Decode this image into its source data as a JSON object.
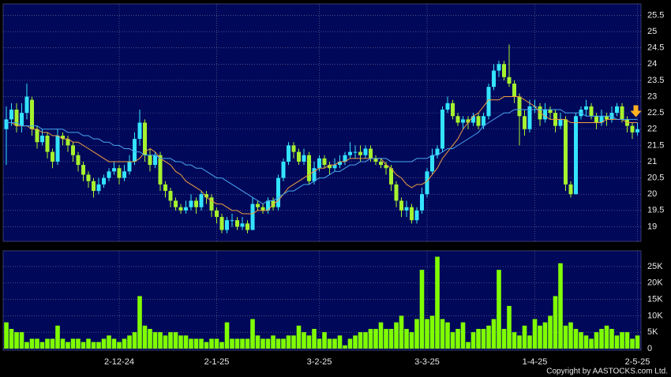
{
  "chart_data": [
    {
      "type": "candlestick",
      "categories": [
        null,
        null,
        null,
        null,
        null,
        null,
        null,
        null,
        null,
        null,
        null,
        null,
        null,
        null,
        null,
        null,
        null,
        null,
        null,
        null,
        null,
        null,
        "2-12-24",
        null,
        null,
        null,
        null,
        null,
        null,
        null,
        null,
        null,
        null,
        null,
        null,
        null,
        null,
        null,
        null,
        null,
        null,
        "2-1-25",
        null,
        null,
        null,
        null,
        null,
        null,
        null,
        null,
        null,
        null,
        null,
        null,
        null,
        null,
        null,
        null,
        null,
        null,
        null,
        "3-2-25",
        null,
        null,
        null,
        null,
        null,
        null,
        null,
        null,
        null,
        null,
        null,
        null,
        null,
        null,
        null,
        null,
        null,
        null,
        null,
        null,
        "3-3-25",
        null,
        null,
        null,
        null,
        null,
        null,
        null,
        null,
        null,
        null,
        null,
        null,
        null,
        null,
        null,
        null,
        null,
        null,
        null,
        null,
        "1-4-25",
        null,
        null,
        null,
        null,
        null,
        null,
        null,
        null,
        null,
        null,
        null,
        null,
        null,
        null,
        null,
        null,
        null,
        null,
        null,
        "2-5-25"
      ],
      "open": [
        22.0,
        22.3,
        22.6,
        22.1,
        22.5,
        22.9,
        22.0,
        21.6,
        21.8,
        21.3,
        21.0,
        21.8,
        21.7,
        21.5,
        21.2,
        20.9,
        20.6,
        20.4,
        20.1,
        20.3,
        20.5,
        20.7,
        20.8,
        20.5,
        20.7,
        21.0,
        21.7,
        22.2,
        21.2,
        20.9,
        21.2,
        20.3,
        20.1,
        19.8,
        19.6,
        19.5,
        19.6,
        19.8,
        19.6,
        20.0,
        19.9,
        19.5,
        19.3,
        18.9,
        19.2,
        19.2,
        19.0,
        19.1,
        18.9,
        19.7,
        19.6,
        19.5,
        19.8,
        19.6,
        20.5,
        21.0,
        21.5,
        21.3,
        21.0,
        21.2,
        20.4,
        20.8,
        21.1,
        20.9,
        20.8,
        20.9,
        21.0,
        21.2,
        21.3,
        21.3,
        21.2,
        21.4,
        21.1,
        21.0,
        20.9,
        20.8,
        20.3,
        19.8,
        19.5,
        19.6,
        19.2,
        19.5,
        20.0,
        20.7,
        21.2,
        21.4,
        22.6,
        22.8,
        22.4,
        22.2,
        22.3,
        22.2,
        22.4,
        22.1,
        22.4,
        23.3,
        23.8,
        24.0,
        23.6,
        23.4,
        23.0,
        22.4,
        22.0,
        22.7,
        22.7,
        22.3,
        22.6,
        22.5,
        22.1,
        22.3,
        20.3,
        20.0,
        22.4,
        22.6,
        22.7,
        22.4,
        22.2,
        22.4,
        22.3,
        22.5,
        22.7,
        22.3,
        22.1,
        21.9
      ],
      "high": [
        22.7,
        22.8,
        22.8,
        22.8,
        23.4,
        23.0,
        22.1,
        22.0,
        21.9,
        21.4,
        22.0,
        21.9,
        21.8,
        21.6,
        21.3,
        21.0,
        20.7,
        20.5,
        20.5,
        20.6,
        20.8,
        21.0,
        20.9,
        20.9,
        21.2,
        21.9,
        22.6,
        22.3,
        21.4,
        21.3,
        21.3,
        20.4,
        20.2,
        19.9,
        19.7,
        19.8,
        20.0,
        19.9,
        20.1,
        20.1,
        20.0,
        19.6,
        19.4,
        19.3,
        19.4,
        19.3,
        19.3,
        19.2,
        19.9,
        19.8,
        19.7,
        19.9,
        19.9,
        20.6,
        21.1,
        21.6,
        21.6,
        21.4,
        21.4,
        21.3,
        21.0,
        21.2,
        21.2,
        21.0,
        21.1,
        21.2,
        21.3,
        21.6,
        21.5,
        21.5,
        21.5,
        21.5,
        21.2,
        21.1,
        21.0,
        20.9,
        20.4,
        19.9,
        19.8,
        19.7,
        19.6,
        20.2,
        20.8,
        21.4,
        21.5,
        22.7,
        23.0,
        22.9,
        22.5,
        22.4,
        22.4,
        22.5,
        22.5,
        22.5,
        23.4,
        24.0,
        24.1,
        24.1,
        24.6,
        23.5,
        23.1,
        22.6,
        22.9,
        22.9,
        22.8,
        22.8,
        22.7,
        22.6,
        22.5,
        22.4,
        20.4,
        22.5,
        22.7,
        22.9,
        22.8,
        22.5,
        22.6,
        22.5,
        22.7,
        22.8,
        22.8,
        22.4,
        22.2,
        22.2
      ],
      "low": [
        20.9,
        22.1,
        21.9,
        21.9,
        22.3,
        21.8,
        21.4,
        21.5,
        21.1,
        20.8,
        20.9,
        21.5,
        21.3,
        21.0,
        20.7,
        20.4,
        20.2,
        19.9,
        20.0,
        20.2,
        20.4,
        20.6,
        20.3,
        20.4,
        20.6,
        20.9,
        21.5,
        21.0,
        20.7,
        20.8,
        20.1,
        19.9,
        19.6,
        19.5,
        19.4,
        19.4,
        19.5,
        19.4,
        19.5,
        19.7,
        19.3,
        19.1,
        18.8,
        18.8,
        19.0,
        18.9,
        18.9,
        18.8,
        18.9,
        19.5,
        19.4,
        19.4,
        19.5,
        19.5,
        20.4,
        20.9,
        21.1,
        20.9,
        20.9,
        20.3,
        20.3,
        20.7,
        20.8,
        20.6,
        20.7,
        20.8,
        20.9,
        21.1,
        21.1,
        21.0,
        21.1,
        21.0,
        20.9,
        20.8,
        20.6,
        20.1,
        19.6,
        19.3,
        19.3,
        19.1,
        19.1,
        19.4,
        19.9,
        20.6,
        21.1,
        21.3,
        22.5,
        22.3,
        22.1,
        22.0,
        22.0,
        22.1,
        22.0,
        22.0,
        22.3,
        23.2,
        23.6,
        23.5,
        23.3,
        22.8,
        21.5,
        21.8,
        21.9,
        22.5,
        22.1,
        22.2,
        22.3,
        21.9,
        22.0,
        20.1,
        19.9,
        20.0,
        22.3,
        22.4,
        22.3,
        22.0,
        22.1,
        22.1,
        22.2,
        22.4,
        22.2,
        21.9,
        21.7,
        21.8
      ],
      "close": [
        22.3,
        22.6,
        22.1,
        22.5,
        23.0,
        22.0,
        21.6,
        21.8,
        21.3,
        21.0,
        21.8,
        21.7,
        21.5,
        21.2,
        20.9,
        20.6,
        20.4,
        20.1,
        20.3,
        20.5,
        20.7,
        20.8,
        20.5,
        20.7,
        21.0,
        21.7,
        22.2,
        21.2,
        20.9,
        21.2,
        20.3,
        20.1,
        19.8,
        19.6,
        19.5,
        19.6,
        19.8,
        19.6,
        20.0,
        19.9,
        19.5,
        19.3,
        18.9,
        19.2,
        19.2,
        19.0,
        19.1,
        18.9,
        19.7,
        19.6,
        19.5,
        19.8,
        19.6,
        20.5,
        21.0,
        21.5,
        21.3,
        21.0,
        21.2,
        20.4,
        20.8,
        21.1,
        20.9,
        20.8,
        20.9,
        21.0,
        21.2,
        21.3,
        21.3,
        21.2,
        21.4,
        21.1,
        21.0,
        20.9,
        20.8,
        20.3,
        19.8,
        19.5,
        19.6,
        19.2,
        19.5,
        20.0,
        20.7,
        21.2,
        21.4,
        22.6,
        22.8,
        22.4,
        22.2,
        22.3,
        22.2,
        22.4,
        22.1,
        22.4,
        23.3,
        23.8,
        24.0,
        23.6,
        23.4,
        23.0,
        22.4,
        22.0,
        22.7,
        22.7,
        22.3,
        22.6,
        22.5,
        22.1,
        22.3,
        20.3,
        20.0,
        22.4,
        22.6,
        22.7,
        22.4,
        22.2,
        22.4,
        22.3,
        22.5,
        22.7,
        22.3,
        22.1,
        21.9,
        22.0
      ],
      "up_color": "#33e3ff",
      "down_color": "#a6f22e",
      "lines": [
        {
          "color": "#f0a040",
          "values": [
            22.2,
            22.2,
            22.1,
            22.1,
            22.1,
            22.0,
            22.0,
            21.9,
            21.9,
            21.8,
            21.8,
            21.7,
            21.7,
            21.6,
            21.6,
            21.5,
            21.4,
            21.3,
            21.2,
            21.1,
            21.0,
            21.0,
            21.0,
            21.0,
            21.0,
            21.0,
            21.1,
            21.3,
            21.4,
            21.3,
            21.1,
            21.0,
            20.9,
            20.7,
            20.6,
            20.4,
            20.3,
            20.2,
            20.1,
            19.9,
            19.8,
            19.7,
            19.7,
            19.6,
            19.5,
            19.5,
            19.4,
            19.4,
            19.4,
            19.5,
            19.5,
            19.5,
            19.7,
            19.8,
            20.0,
            20.2,
            20.3,
            20.4,
            20.5,
            20.6,
            20.7,
            20.8,
            20.8,
            20.9,
            20.9,
            21.0,
            21.0,
            21.1,
            21.1,
            21.1,
            21.1,
            21.1,
            21.1,
            21.1,
            20.9,
            20.8,
            20.6,
            20.5,
            20.3,
            20.2,
            20.3,
            20.3,
            20.4,
            20.6,
            20.8,
            21.1,
            21.3,
            21.5,
            21.7,
            22.0,
            22.2,
            22.4,
            22.5,
            22.7,
            22.9,
            22.9,
            22.9,
            23.0,
            23.0,
            23.0,
            23.0,
            22.9,
            22.8,
            22.7,
            22.5,
            22.4,
            22.3,
            22.3,
            22.3,
            22.3,
            22.2,
            22.2,
            22.2,
            22.2,
            22.2,
            22.2,
            22.2,
            22.3,
            22.3,
            22.3,
            22.3,
            22.2,
            22.2,
            22.2
          ]
        },
        {
          "color": "#4aa8f0",
          "values": [
            22.2,
            22.2,
            22.2,
            22.1,
            22.1,
            22.1,
            22.1,
            22.0,
            22.0,
            22.0,
            22.0,
            22.0,
            21.9,
            21.9,
            21.9,
            21.8,
            21.8,
            21.7,
            21.7,
            21.6,
            21.6,
            21.5,
            21.5,
            21.4,
            21.4,
            21.3,
            21.3,
            21.2,
            21.2,
            21.2,
            21.1,
            21.1,
            21.1,
            21.0,
            21.0,
            20.9,
            20.9,
            20.8,
            20.8,
            20.7,
            20.6,
            20.5,
            20.5,
            20.4,
            20.3,
            20.2,
            20.1,
            20.0,
            19.9,
            19.8,
            19.7,
            19.8,
            19.8,
            19.9,
            20.0,
            20.1,
            20.1,
            20.2,
            20.3,
            20.3,
            20.4,
            20.5,
            20.5,
            20.6,
            20.7,
            20.7,
            20.8,
            20.9,
            20.9,
            21.0,
            21.0,
            21.1,
            21.1,
            21.1,
            21.1,
            21.0,
            21.0,
            21.0,
            21.0,
            21.0,
            21.1,
            21.1,
            21.1,
            21.2,
            21.2,
            21.3,
            21.4,
            21.4,
            21.5,
            21.6,
            21.7,
            21.8,
            21.9,
            22.1,
            22.2,
            22.3,
            22.4,
            22.5,
            22.5,
            22.6,
            22.6,
            22.6,
            22.6,
            22.6,
            22.6,
            22.6,
            22.6,
            22.6,
            22.6,
            22.5,
            22.5,
            22.5,
            22.5,
            22.4,
            22.4,
            22.4,
            22.4,
            22.4,
            22.4,
            22.3,
            22.3,
            22.3,
            22.3,
            22.3
          ]
        }
      ],
      "ylim": [
        18.55,
        25.85
      ],
      "yticks": [
        19,
        19.5,
        20,
        20.5,
        21,
        21.5,
        22,
        22.5,
        23,
        23.5,
        24,
        24.5,
        25,
        25.5
      ],
      "grid": true
    },
    {
      "type": "bar",
      "values": [
        8000,
        6000,
        5000,
        5000,
        2000,
        3000,
        3000,
        2000,
        3000,
        3000,
        7000,
        3000,
        2000,
        3000,
        3000,
        2000,
        3000,
        2000,
        2000,
        3000,
        4000,
        3000,
        2000,
        3000,
        4000,
        5000,
        16000,
        7000,
        6000,
        5000,
        5000,
        4000,
        5000,
        5000,
        4000,
        4000,
        3000,
        3000,
        3000,
        2000,
        3000,
        3000,
        2000,
        8000,
        3000,
        3000,
        3000,
        3000,
        9000,
        4000,
        3000,
        3000,
        4000,
        3000,
        3000,
        4000,
        4000,
        7000,
        5000,
        4000,
        6000,
        3000,
        5000,
        3000,
        3000,
        4000,
        1000,
        3000,
        4000,
        5000,
        5000,
        6000,
        6000,
        8000,
        6000,
        6000,
        8000,
        10000,
        6000,
        5000,
        9000,
        24000,
        9000,
        10000,
        28000,
        9000,
        8000,
        5000,
        6000,
        8000,
        2000,
        5000,
        6000,
        6000,
        7000,
        9000,
        24000,
        6000,
        13000,
        5000,
        4000,
        7000,
        4000,
        9000,
        7000,
        8000,
        10000,
        16000,
        26000,
        7000,
        8000,
        6000,
        5000,
        4000,
        3000,
        5000,
        6000,
        7000,
        6000,
        4000,
        5000,
        5000,
        3000,
        4000
      ],
      "color": "#80ff00",
      "ylim": [
        0,
        29800
      ],
      "yticks": [
        0,
        {
          "value": 5000,
          "label": "5K"
        },
        {
          "value": 10000,
          "label": "10K"
        },
        {
          "value": 15000,
          "label": "15K"
        },
        {
          "value": 20000,
          "label": "20K"
        },
        {
          "value": 25000,
          "label": "25K"
        }
      ],
      "grid": true
    }
  ],
  "footer": "Copyright by AASTOCKS.com Ltd."
}
